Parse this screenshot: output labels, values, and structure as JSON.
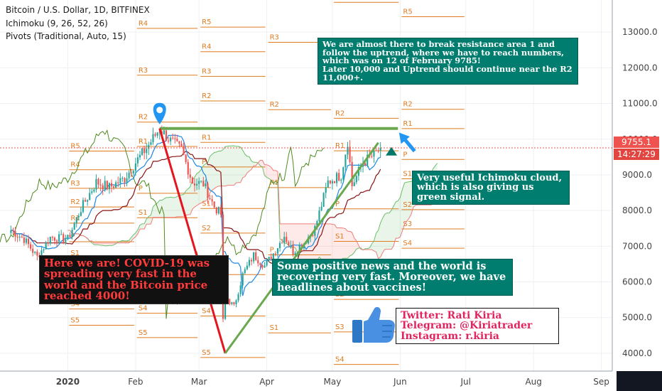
{
  "header": {
    "title": "Bitcoin / U.S. Dollar, 1D, BITFINEX",
    "indicator1": "Ichimoku (9, 26, 52, 26)",
    "indicator2": "Pivots (Traditional, Auto, 15)"
  },
  "price_axis": {
    "ticks": [
      "13000.0",
      "12000.0",
      "11000.0",
      "10000.0",
      "9000.0",
      "8000.0",
      "7000.0",
      "6000.0",
      "5000.0",
      "4000.0"
    ],
    "last_price": "9755.1",
    "countdown": "14:27:29"
  },
  "time_axis": {
    "ticks": [
      "2020",
      "Feb",
      "Mar",
      "Apr",
      "May",
      "Jun",
      "Jul",
      "Aug",
      "Sep"
    ]
  },
  "notes": {
    "resistance": "We are almost there to break resistance area 1 and follow the uptrend, where we have to reach numbers, which was on 12 of February 9785!\nLater 10,000 and Uptrend should continue near the R2 11,000+.",
    "ichimoku": "Very useful Ichimoku cloud, which is also giving us green signal.",
    "covid": "Here we are! COVID-19 was spreading very fast in the world and the Bitcoin price reached 4000!",
    "news": "Some positive news and the world is recovering very fast. Moreover, we have headlines about vaccines!",
    "social": "Twitter: Rati Kiria\nTelegram: @Kiriatrader\nInstagram: r.kiria"
  },
  "colors": {
    "pivot": "#e07b1f",
    "trendline_up": "#6aa84f",
    "trendline_down": "#e6141e",
    "note_green": "#007d6e",
    "last_price": "#ef5350",
    "candle_up": "#26a69a",
    "candle_down": "#ef5350"
  },
  "icons": [
    "location-pin-icon",
    "up-arrow-icon",
    "thumbs-up-icon"
  ],
  "chart_data": {
    "type": "candlestick",
    "symbol": "BTCUSD",
    "interval": "1D",
    "exchange": "BITFINEX",
    "ylim": [
      3500,
      13900
    ],
    "x_range": [
      "2019-12-01",
      "2020-09-06"
    ],
    "last_price": 9755.1,
    "close_series": [
      [
        "2019-12-06",
        7450
      ],
      [
        "2019-12-12",
        7200
      ],
      [
        "2019-12-18",
        6700
      ],
      [
        "2019-12-24",
        7250
      ],
      [
        "2020-01-01",
        7200
      ],
      [
        "2020-01-07",
        8050
      ],
      [
        "2020-01-14",
        8800
      ],
      [
        "2020-01-20",
        8650
      ],
      [
        "2020-01-27",
        8900
      ],
      [
        "2020-02-01",
        9350
      ],
      [
        "2020-02-06",
        9750
      ],
      [
        "2020-02-12",
        10300
      ],
      [
        "2020-02-17",
        9950
      ],
      [
        "2020-02-22",
        9700
      ],
      [
        "2020-02-27",
        8800
      ],
      [
        "2020-03-03",
        8750
      ],
      [
        "2020-03-08",
        8100
      ],
      [
        "2020-03-11",
        7900
      ],
      [
        "2020-03-12",
        4900
      ],
      [
        "2020-03-13",
        5600
      ],
      [
        "2020-03-17",
        5300
      ],
      [
        "2020-03-21",
        6200
      ],
      [
        "2020-03-26",
        6750
      ],
      [
        "2020-03-31",
        6450
      ],
      [
        "2020-04-04",
        6800
      ],
      [
        "2020-04-09",
        7300
      ],
      [
        "2020-04-13",
        6850
      ],
      [
        "2020-04-18",
        7100
      ],
      [
        "2020-04-23",
        7500
      ],
      [
        "2020-04-29",
        8800
      ],
      [
        "2020-05-05",
        9000
      ],
      [
        "2020-05-08",
        9950
      ],
      [
        "2020-05-10",
        8700
      ],
      [
        "2020-05-15",
        9350
      ],
      [
        "2020-05-20",
        9550
      ],
      [
        "2020-05-23",
        9755
      ]
    ]
  }
}
